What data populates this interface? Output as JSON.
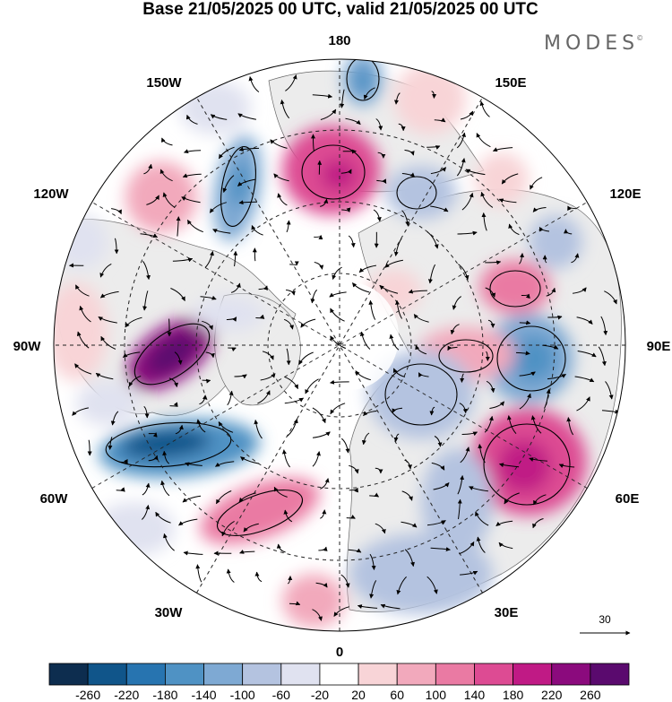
{
  "title": "Base 21/05/2025 00 UTC, valid 21/05/2025 00 UTC",
  "brand": {
    "text": "MODES",
    "mark": "©"
  },
  "map": {
    "projection": "north-polar-stereographic",
    "longitude_labels": {
      "top": "180",
      "bottom": "0",
      "left": "90W",
      "right": "90E",
      "upper_left_1": "150W",
      "upper_left_2": "120W",
      "upper_right_1": "150E",
      "upper_right_2": "120E",
      "lower_left_1": "60W",
      "lower_left_2": "30W",
      "lower_right_1": "60E",
      "lower_right_2": "30E"
    },
    "reference_vector": {
      "label": "30"
    },
    "colors": {
      "land_fill": "#ececec",
      "coast": "#555555",
      "grid": "#222222",
      "contour": "#000000"
    }
  },
  "colorbar": {
    "ticks": [
      "-260",
      "-220",
      "-180",
      "-140",
      "-100",
      "-60",
      "-20",
      "20",
      "60",
      "100",
      "140",
      "180",
      "220",
      "260"
    ],
    "colors": [
      "#0d2d4f",
      "#10558a",
      "#2774b0",
      "#4f92c4",
      "#7ea9d3",
      "#b4c3e0",
      "#e0e2f0",
      "#ffffff",
      "#f8d4d7",
      "#f2a9bc",
      "#ea7aa3",
      "#dd4b93",
      "#c01a85",
      "#8b0a7d",
      "#5a0a6e"
    ]
  }
}
